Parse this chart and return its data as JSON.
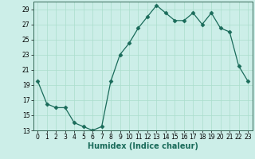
{
  "x": [
    0,
    1,
    2,
    3,
    4,
    5,
    6,
    7,
    8,
    9,
    10,
    11,
    12,
    13,
    14,
    15,
    16,
    17,
    18,
    19,
    20,
    21,
    22,
    23
  ],
  "y": [
    19.5,
    16.5,
    16.0,
    16.0,
    14.0,
    13.5,
    13.0,
    13.5,
    19.5,
    23.0,
    24.5,
    26.5,
    28.0,
    29.5,
    28.5,
    27.5,
    27.5,
    28.5,
    27.0,
    28.5,
    26.5,
    26.0,
    21.5,
    19.5
  ],
  "line_color": "#1a6b5a",
  "marker": "D",
  "marker_size": 2.5,
  "background_color": "#cceee8",
  "grid_color": "#aaddcc",
  "xlabel": "Humidex (Indice chaleur)",
  "xlim": [
    -0.5,
    23.5
  ],
  "ylim": [
    13,
    30
  ],
  "yticks": [
    13,
    15,
    17,
    19,
    21,
    23,
    25,
    27,
    29
  ],
  "xticks": [
    0,
    1,
    2,
    3,
    4,
    5,
    6,
    7,
    8,
    9,
    10,
    11,
    12,
    13,
    14,
    15,
    16,
    17,
    18,
    19,
    20,
    21,
    22,
    23
  ],
  "tick_fontsize": 5.5,
  "xlabel_fontsize": 7,
  "spine_color": "#336655"
}
